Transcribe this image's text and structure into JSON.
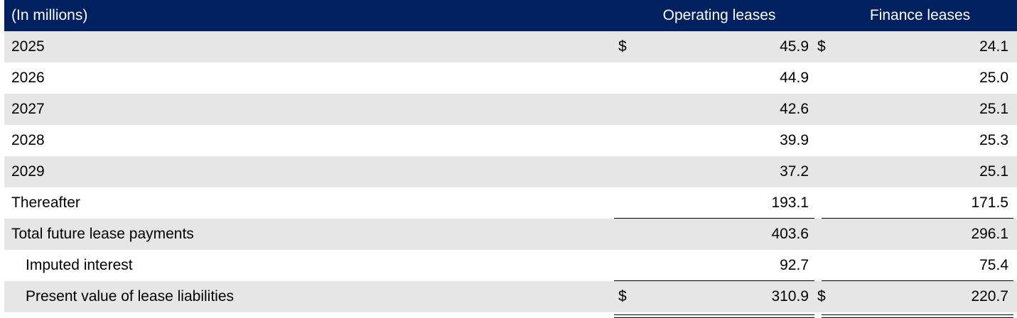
{
  "header": {
    "units_label": "(In millions)",
    "col_operating": "Operating leases",
    "col_finance": "Finance leases"
  },
  "currency_symbol": "$",
  "rows": [
    {
      "label": "2025",
      "operating": "45.9",
      "finance": "24.1"
    },
    {
      "label": "2026",
      "operating": "44.9",
      "finance": "25.0"
    },
    {
      "label": "2027",
      "operating": "42.6",
      "finance": "25.1"
    },
    {
      "label": "2028",
      "operating": "39.9",
      "finance": "25.3"
    },
    {
      "label": "2029",
      "operating": "37.2",
      "finance": "25.1"
    },
    {
      "label": "Thereafter",
      "operating": "193.1",
      "finance": "171.5"
    },
    {
      "label": "Total future lease payments",
      "operating": "403.6",
      "finance": "296.1"
    },
    {
      "label": "Imputed interest",
      "operating": "92.7",
      "finance": "75.4"
    },
    {
      "label": "Present value of lease liabilities",
      "operating": "310.9",
      "finance": "220.7"
    }
  ],
  "colors": {
    "header_bg": "#002060",
    "header_text": "#ffffff",
    "shaded_row": "#e6e6e6"
  }
}
